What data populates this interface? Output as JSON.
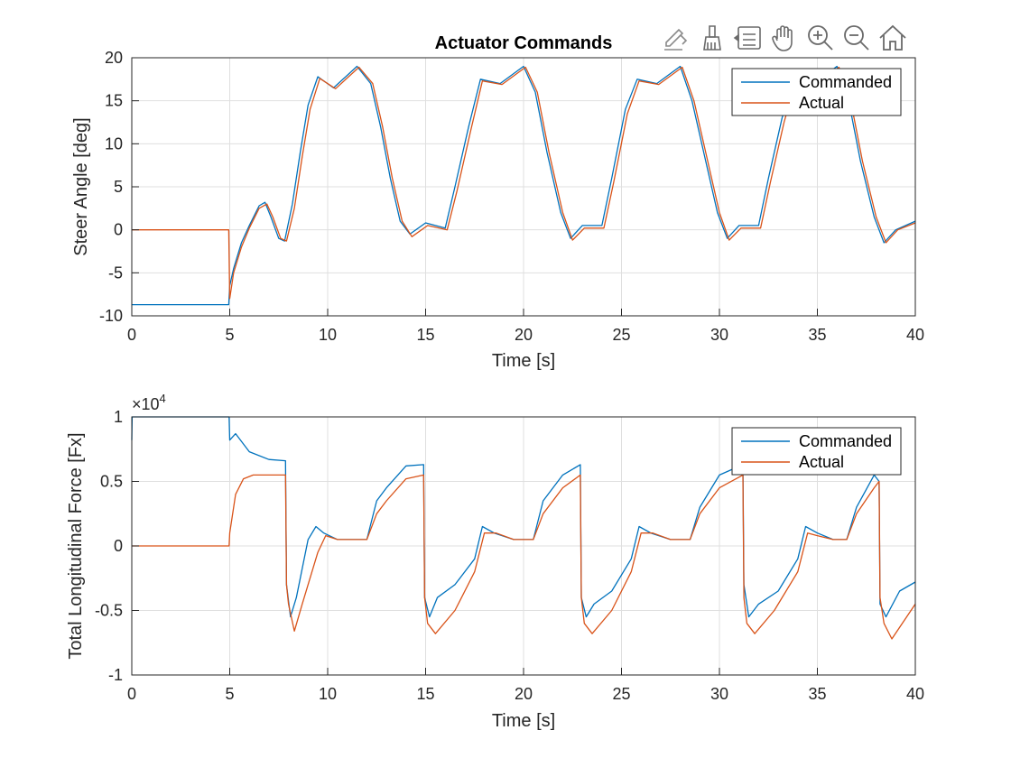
{
  "figure_title": "Actuator Commands",
  "toolbar": [
    {
      "name": "edit-plot-icon"
    },
    {
      "name": "brush-icon"
    },
    {
      "name": "data-tips-icon"
    },
    {
      "name": "pan-hand-icon"
    },
    {
      "name": "zoom-in-icon"
    },
    {
      "name": "zoom-out-icon"
    },
    {
      "name": "home-icon"
    }
  ],
  "colors": {
    "commanded": "#0072BD",
    "actual": "#D95319",
    "grid": "#DFDFDF",
    "axis": "#262626"
  },
  "chart_data": [
    {
      "type": "line",
      "title": "Actuator Commands",
      "xlabel": "Time [s]",
      "ylabel": "Steer Angle [deg]",
      "xlim": [
        0,
        40
      ],
      "ylim": [
        -10,
        20
      ],
      "xticks": [
        0,
        5,
        10,
        15,
        20,
        25,
        30,
        35,
        40
      ],
      "yticks": [
        -10,
        -5,
        0,
        5,
        10,
        15,
        20
      ],
      "grid": true,
      "legend": "top-right",
      "series": [
        {
          "name": "Commanded",
          "x": [
            0,
            4.95,
            5.0,
            5.2,
            5.6,
            6.0,
            6.5,
            6.8,
            7.1,
            7.5,
            7.8,
            8.2,
            8.6,
            9.0,
            9.5,
            10.3,
            11.5,
            12.2,
            12.7,
            13.2,
            13.7,
            14.2,
            15.0,
            16.0,
            16.5,
            17.2,
            17.8,
            18.8,
            20.0,
            20.6,
            21.2,
            21.9,
            22.4,
            23.0,
            24.0,
            24.5,
            25.2,
            25.8,
            26.8,
            28.0,
            28.6,
            29.2,
            29.9,
            30.4,
            31.0,
            32.0,
            32.5,
            33.2,
            33.8,
            34.8,
            36.0,
            36.6,
            37.2,
            37.9,
            38.4,
            39.0,
            40.0
          ],
          "y": [
            -8.7,
            -8.7,
            -6.5,
            -4.5,
            -1.5,
            0.5,
            2.8,
            3.2,
            1.5,
            -1.0,
            -1.3,
            3.0,
            9.0,
            14.5,
            17.8,
            16.5,
            19.0,
            17.0,
            12.0,
            6.0,
            1.0,
            -0.5,
            0.8,
            0.2,
            5.0,
            12.0,
            17.5,
            17.0,
            19.0,
            16.0,
            9.0,
            2.0,
            -1.0,
            0.5,
            0.5,
            6.0,
            14.0,
            17.5,
            17.0,
            19.0,
            15.0,
            9.0,
            2.0,
            -1.0,
            0.5,
            0.5,
            6.0,
            13.0,
            17.5,
            17.0,
            19.0,
            15.0,
            8.0,
            1.5,
            -1.5,
            0.0,
            1.0
          ]
        },
        {
          "name": "Actual",
          "x": [
            0,
            4.95,
            5.0,
            5.2,
            5.6,
            6.0,
            6.5,
            6.9,
            7.2,
            7.6,
            7.9,
            8.3,
            8.7,
            9.1,
            9.6,
            10.4,
            11.6,
            12.3,
            12.8,
            13.3,
            13.8,
            14.3,
            15.1,
            16.1,
            16.6,
            17.3,
            17.9,
            18.9,
            20.1,
            20.7,
            21.3,
            22.0,
            22.5,
            23.1,
            24.1,
            24.6,
            25.3,
            25.9,
            26.9,
            28.1,
            28.7,
            29.3,
            30.0,
            30.5,
            31.1,
            32.1,
            32.6,
            33.3,
            33.9,
            34.9,
            36.1,
            36.7,
            37.3,
            38.0,
            38.5,
            39.1,
            40.0
          ],
          "y": [
            0,
            0,
            -8.0,
            -5.0,
            -2.0,
            0.2,
            2.5,
            3.0,
            1.5,
            -1.0,
            -1.3,
            2.5,
            8.5,
            14.0,
            17.6,
            16.4,
            18.9,
            17.0,
            12.0,
            6.0,
            1.0,
            -0.8,
            0.5,
            0.0,
            4.5,
            11.5,
            17.3,
            16.9,
            18.9,
            16.0,
            9.0,
            2.0,
            -1.2,
            0.2,
            0.2,
            5.5,
            13.5,
            17.3,
            16.9,
            18.9,
            15.0,
            9.0,
            2.0,
            -1.2,
            0.2,
            0.2,
            5.5,
            12.5,
            17.3,
            16.9,
            18.9,
            15.0,
            8.0,
            1.5,
            -1.5,
            0.0,
            0.8
          ]
        }
      ]
    },
    {
      "type": "line",
      "xlabel": "Time [s]",
      "ylabel": "Total Longitudinal Force [Fx]",
      "y_exponent_label": "×10",
      "y_exponent": "4",
      "xlim": [
        0,
        40
      ],
      "ylim": [
        -1,
        1
      ],
      "xticks": [
        0,
        5,
        10,
        15,
        20,
        25,
        30,
        35,
        40
      ],
      "yticks": [
        -1,
        -0.5,
        0,
        0.5,
        1
      ],
      "grid": true,
      "legend": "top-right",
      "series": [
        {
          "name": "Commanded",
          "x": [
            0,
            0.02,
            4.97,
            5.0,
            5.3,
            6.0,
            7.0,
            7.85,
            7.9,
            8.1,
            8.4,
            9.0,
            9.4,
            9.8,
            10.5,
            11.2,
            12.0,
            12.5,
            13.0,
            14.0,
            14.9,
            14.95,
            15.2,
            15.6,
            16.5,
            17.5,
            17.9,
            18.5,
            19.5,
            20.5,
            21.0,
            22.0,
            22.9,
            22.95,
            23.2,
            23.6,
            24.5,
            25.5,
            25.9,
            26.5,
            27.5,
            28.5,
            29.0,
            30.0,
            31.2,
            31.25,
            31.5,
            32.0,
            33.0,
            34.0,
            34.4,
            35.0,
            35.8,
            36.5,
            37.0,
            37.9,
            38.15,
            38.2,
            38.5,
            39.2,
            40.0
          ],
          "y": [
            0.82,
            1.0,
            1.0,
            0.82,
            0.87,
            0.73,
            0.67,
            0.66,
            -0.3,
            -0.55,
            -0.4,
            0.05,
            0.15,
            0.1,
            0.05,
            0.05,
            0.05,
            0.35,
            0.45,
            0.62,
            0.63,
            -0.4,
            -0.55,
            -0.4,
            -0.3,
            -0.1,
            0.15,
            0.1,
            0.05,
            0.05,
            0.35,
            0.55,
            0.63,
            -0.4,
            -0.55,
            -0.45,
            -0.35,
            -0.1,
            0.15,
            0.1,
            0.05,
            0.05,
            0.3,
            0.55,
            0.63,
            -0.3,
            -0.55,
            -0.45,
            -0.35,
            -0.1,
            0.15,
            0.1,
            0.05,
            0.05,
            0.3,
            0.55,
            0.5,
            -0.45,
            -0.55,
            -0.35,
            -0.28
          ]
        },
        {
          "name": "Actual",
          "x": [
            0,
            4.97,
            5.0,
            5.3,
            5.7,
            6.2,
            7.0,
            7.85,
            7.9,
            8.0,
            8.3,
            8.7,
            9.5,
            9.9,
            10.5,
            11.2,
            12.0,
            12.5,
            13.0,
            14.0,
            14.9,
            14.95,
            15.1,
            15.5,
            16.5,
            17.5,
            18.0,
            18.6,
            19.5,
            20.5,
            21.0,
            22.0,
            22.9,
            22.95,
            23.1,
            23.5,
            24.5,
            25.5,
            26.0,
            26.6,
            27.5,
            28.5,
            29.0,
            30.0,
            31.2,
            31.25,
            31.4,
            31.8,
            32.8,
            34.0,
            34.5,
            35.0,
            35.8,
            36.5,
            37.0,
            37.9,
            38.15,
            38.2,
            38.4,
            38.8,
            40.0
          ],
          "y": [
            0,
            0,
            0.1,
            0.4,
            0.52,
            0.55,
            0.55,
            0.55,
            -0.3,
            -0.45,
            -0.66,
            -0.45,
            -0.05,
            0.08,
            0.05,
            0.05,
            0.05,
            0.25,
            0.35,
            0.52,
            0.55,
            -0.4,
            -0.6,
            -0.68,
            -0.5,
            -0.2,
            0.1,
            0.1,
            0.05,
            0.05,
            0.25,
            0.45,
            0.55,
            -0.4,
            -0.6,
            -0.68,
            -0.5,
            -0.2,
            0.1,
            0.1,
            0.05,
            0.05,
            0.25,
            0.45,
            0.55,
            -0.4,
            -0.6,
            -0.68,
            -0.5,
            -0.2,
            0.1,
            0.08,
            0.05,
            0.05,
            0.25,
            0.45,
            0.5,
            -0.4,
            -0.6,
            -0.72,
            -0.45
          ]
        }
      ]
    }
  ]
}
